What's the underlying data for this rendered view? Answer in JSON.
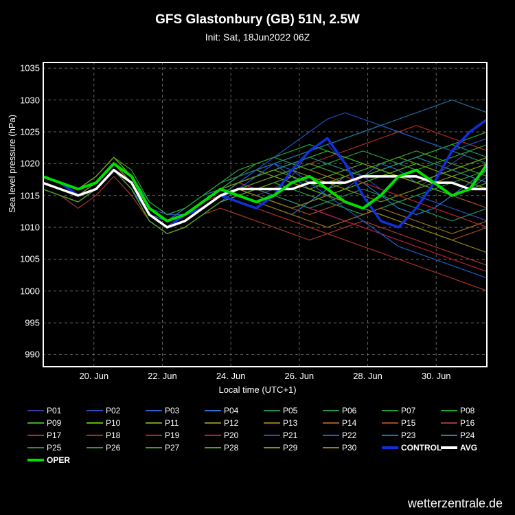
{
  "title": "GFS Glastonbury (GB) 51N, 2.5W",
  "subtitle": "Init: Sat, 18Jun2022 06Z",
  "watermark": "wetterzentrale.de",
  "chart": {
    "type": "line",
    "background_color": "#000000",
    "grid_color": "#666666",
    "axis_color": "#ffffff",
    "text_color": "#ffffff",
    "ylabel": "Sea level pressure (hPa)",
    "xlabel": "Local time (UTC+1)",
    "ylim": [
      988,
      1036
    ],
    "yticks": [
      990,
      995,
      1000,
      1005,
      1010,
      1015,
      1020,
      1025,
      1030,
      1035
    ],
    "xlim": [
      0,
      13
    ],
    "xticks": [
      1.5,
      3.5,
      5.5,
      7.5,
      9.5,
      11.5
    ],
    "xtick_labels": [
      "20. Jun",
      "22. Jun",
      "24. Jun",
      "26. Jun",
      "28. Jun",
      "30. Jun"
    ],
    "title_fontsize": 19,
    "subtitle_fontsize": 14,
    "label_fontsize": 13,
    "tick_fontsize": 13,
    "legend_fontsize": 12,
    "thin_line_width": 1.2,
    "thick_line_width": 3.5,
    "grid_dash": "4,4",
    "series": [
      {
        "name": "P01",
        "color": "#3a3a9e",
        "width": 1.2,
        "y": [
          1017,
          1016,
          1015,
          1016,
          1019,
          1017,
          1013,
          1011,
          1012,
          1013,
          1015,
          1016,
          1015,
          1016,
          1018,
          1022,
          1023,
          1020,
          1018,
          1016,
          1015,
          1016,
          1018,
          1020,
          1022,
          1021
        ]
      },
      {
        "name": "P02",
        "color": "#2e4bc0",
        "width": 1.2,
        "y": [
          1018,
          1017,
          1015,
          1017,
          1020,
          1018,
          1013,
          1012,
          1012,
          1014,
          1016,
          1017,
          1016,
          1015,
          1014,
          1013,
          1012,
          1011,
          1012,
          1013,
          1014,
          1015,
          1014,
          1013,
          1012,
          1011
        ]
      },
      {
        "name": "P03",
        "color": "#2a5fd0",
        "width": 1.2,
        "y": [
          1016,
          1015,
          1014,
          1016,
          1019,
          1016,
          1012,
          1010,
          1011,
          1013,
          1015,
          1017,
          1019,
          1020,
          1018,
          1016,
          1015,
          1016,
          1018,
          1020,
          1019,
          1017,
          1016,
          1015,
          1016,
          1018
        ]
      },
      {
        "name": "P04",
        "color": "#2878d8",
        "width": 1.2,
        "y": [
          1017,
          1016,
          1015,
          1017,
          1020,
          1017,
          1012,
          1011,
          1013,
          1015,
          1016,
          1015,
          1014,
          1013,
          1012,
          1014,
          1016,
          1018,
          1017,
          1015,
          1013,
          1012,
          1013,
          1015,
          1017,
          1019
        ]
      },
      {
        "name": "P05",
        "color": "#1f8a70",
        "width": 1.2,
        "y": [
          1018,
          1017,
          1016,
          1018,
          1021,
          1018,
          1014,
          1012,
          1013,
          1015,
          1017,
          1018,
          1019,
          1020,
          1021,
          1022,
          1023,
          1024,
          1025,
          1026,
          1025,
          1024,
          1023,
          1022,
          1021,
          1020
        ]
      },
      {
        "name": "P06",
        "color": "#1a9850",
        "width": 1.2,
        "y": [
          1017,
          1016,
          1015,
          1017,
          1020,
          1017,
          1013,
          1011,
          1012,
          1014,
          1016,
          1017,
          1018,
          1019,
          1020,
          1019,
          1018,
          1017,
          1018,
          1019,
          1020,
          1021,
          1022,
          1023,
          1022,
          1021
        ]
      },
      {
        "name": "P07",
        "color": "#1fa040",
        "width": 1.2,
        "y": [
          1016,
          1015,
          1014,
          1016,
          1019,
          1016,
          1011,
          1009,
          1010,
          1012,
          1014,
          1015,
          1016,
          1017,
          1016,
          1015,
          1014,
          1013,
          1012,
          1013,
          1014,
          1015,
          1016,
          1017,
          1018,
          1019
        ]
      },
      {
        "name": "P08",
        "color": "#20aa30",
        "width": 1.2,
        "y": [
          1018,
          1017,
          1016,
          1018,
          1021,
          1019,
          1014,
          1012,
          1013,
          1015,
          1017,
          1019,
          1020,
          1021,
          1022,
          1023,
          1022,
          1021,
          1020,
          1019,
          1020,
          1021,
          1022,
          1023,
          1024,
          1025
        ]
      },
      {
        "name": "P09",
        "color": "#3ab020",
        "width": 1.2,
        "y": [
          1017,
          1016,
          1015,
          1017,
          1020,
          1017,
          1012,
          1010,
          1011,
          1013,
          1015,
          1017,
          1018,
          1019,
          1020,
          1021,
          1022,
          1021,
          1020,
          1019,
          1018,
          1017,
          1018,
          1019,
          1020,
          1021
        ]
      },
      {
        "name": "P10",
        "color": "#55b810",
        "width": 1.2,
        "y": [
          1016,
          1015,
          1014,
          1016,
          1019,
          1016,
          1011,
          1009,
          1010,
          1012,
          1014,
          1016,
          1017,
          1018,
          1017,
          1016,
          1015,
          1016,
          1017,
          1018,
          1019,
          1020,
          1019,
          1018,
          1017,
          1016
        ]
      },
      {
        "name": "P11",
        "color": "#70a010",
        "width": 1.2,
        "y": [
          1018,
          1017,
          1016,
          1018,
          1021,
          1018,
          1013,
          1011,
          1012,
          1014,
          1016,
          1018,
          1019,
          1018,
          1017,
          1016,
          1017,
          1018,
          1019,
          1020,
          1021,
          1020,
          1019,
          1018,
          1019,
          1020
        ]
      },
      {
        "name": "P12",
        "color": "#888810",
        "width": 1.2,
        "y": [
          1017,
          1016,
          1015,
          1017,
          1020,
          1017,
          1012,
          1010,
          1011,
          1013,
          1015,
          1016,
          1017,
          1018,
          1019,
          1018,
          1017,
          1016,
          1015,
          1014,
          1015,
          1016,
          1017,
          1018,
          1017,
          1016
        ]
      },
      {
        "name": "P13",
        "color": "#987018",
        "width": 1.2,
        "y": [
          1016,
          1015,
          1014,
          1016,
          1019,
          1016,
          1011,
          1009,
          1010,
          1012,
          1014,
          1015,
          1014,
          1013,
          1012,
          1011,
          1010,
          1011,
          1012,
          1013,
          1012,
          1011,
          1010,
          1009,
          1010,
          1011
        ]
      },
      {
        "name": "P14",
        "color": "#a05820",
        "width": 1.2,
        "y": [
          1018,
          1017,
          1016,
          1018,
          1021,
          1018,
          1013,
          1011,
          1012,
          1014,
          1016,
          1017,
          1018,
          1019,
          1020,
          1019,
          1018,
          1017,
          1018,
          1019,
          1018,
          1017,
          1016,
          1015,
          1014,
          1013
        ]
      },
      {
        "name": "P15",
        "color": "#a04828",
        "width": 1.2,
        "y": [
          1017,
          1016,
          1015,
          1017,
          1020,
          1017,
          1012,
          1010,
          1011,
          1013,
          1015,
          1016,
          1015,
          1014,
          1013,
          1012,
          1013,
          1014,
          1013,
          1012,
          1011,
          1010,
          1009,
          1008,
          1009,
          1010
        ]
      },
      {
        "name": "P16",
        "color": "#a03830",
        "width": 1.2,
        "y": [
          1016,
          1015,
          1013,
          1015,
          1018,
          1015,
          1011,
          1009,
          1010,
          1012,
          1013,
          1012,
          1011,
          1010,
          1009,
          1008,
          1009,
          1010,
          1011,
          1010,
          1009,
          1008,
          1007,
          1006,
          1005,
          1004
        ]
      },
      {
        "name": "P17",
        "color": "#a83028",
        "width": 1.2,
        "y": [
          1018,
          1017,
          1016,
          1018,
          1021,
          1018,
          1013,
          1011,
          1012,
          1014,
          1015,
          1014,
          1013,
          1012,
          1011,
          1010,
          1009,
          1008,
          1007,
          1006,
          1005,
          1004,
          1003,
          1002,
          1001,
          1000
        ]
      },
      {
        "name": "P18",
        "color": "#b02820",
        "width": 1.2,
        "y": [
          1017,
          1016,
          1015,
          1017,
          1020,
          1017,
          1012,
          1010,
          1011,
          1013,
          1015,
          1016,
          1017,
          1018,
          1019,
          1020,
          1021,
          1022,
          1023,
          1024,
          1025,
          1026,
          1025,
          1024,
          1023,
          1022
        ]
      },
      {
        "name": "P19",
        "color": "#b82030",
        "width": 1.2,
        "y": [
          1016,
          1015,
          1014,
          1016,
          1019,
          1016,
          1011,
          1009,
          1010,
          1012,
          1014,
          1016,
          1017,
          1018,
          1019,
          1020,
          1019,
          1018,
          1017,
          1016,
          1015,
          1014,
          1013,
          1012,
          1011,
          1010
        ]
      },
      {
        "name": "P20",
        "color": "#c01840",
        "width": 1.2,
        "y": [
          1018,
          1017,
          1016,
          1018,
          1021,
          1018,
          1013,
          1011,
          1012,
          1014,
          1016,
          1017,
          1016,
          1015,
          1014,
          1013,
          1012,
          1011,
          1010,
          1009,
          1008,
          1007,
          1006,
          1005,
          1004,
          1003
        ]
      },
      {
        "name": "P21",
        "color": "#2050c0",
        "width": 1.2,
        "y": [
          1017,
          1016,
          1015,
          1017,
          1020,
          1017,
          1012,
          1010,
          1011,
          1013,
          1015,
          1017,
          1019,
          1021,
          1023,
          1025,
          1027,
          1028,
          1027,
          1026,
          1025,
          1024,
          1023,
          1022,
          1023,
          1024
        ]
      },
      {
        "name": "P22",
        "color": "#1860d0",
        "width": 1.2,
        "y": [
          1016,
          1015,
          1014,
          1016,
          1019,
          1016,
          1011,
          1009,
          1010,
          1012,
          1014,
          1016,
          1018,
          1020,
          1019,
          1017,
          1015,
          1013,
          1011,
          1009,
          1007,
          1006,
          1005,
          1004,
          1003,
          1002
        ]
      },
      {
        "name": "P23",
        "color": "#2070a0",
        "width": 1.2,
        "y": [
          1018,
          1017,
          1016,
          1018,
          1021,
          1018,
          1013,
          1011,
          1012,
          1014,
          1016,
          1018,
          1019,
          1020,
          1021,
          1022,
          1023,
          1024,
          1025,
          1026,
          1027,
          1028,
          1029,
          1030,
          1029,
          1028
        ]
      },
      {
        "name": "P24",
        "color": "#208890",
        "width": 1.2,
        "y": [
          1017,
          1016,
          1015,
          1017,
          1020,
          1017,
          1012,
          1010,
          1011,
          1013,
          1015,
          1017,
          1018,
          1019,
          1020,
          1021,
          1020,
          1019,
          1018,
          1019,
          1020,
          1021,
          1020,
          1019,
          1018,
          1017
        ]
      },
      {
        "name": "P25",
        "color": "#209060",
        "width": 1.2,
        "y": [
          1016,
          1015,
          1014,
          1016,
          1019,
          1016,
          1011,
          1009,
          1010,
          1012,
          1014,
          1015,
          1016,
          1015,
          1014,
          1013,
          1014,
          1015,
          1016,
          1015,
          1014,
          1013,
          1012,
          1011,
          1012,
          1013
        ]
      },
      {
        "name": "P26",
        "color": "#309840",
        "width": 1.2,
        "y": [
          1018,
          1017,
          1016,
          1018,
          1021,
          1018,
          1013,
          1011,
          1012,
          1014,
          1016,
          1018,
          1020,
          1021,
          1020,
          1019,
          1020,
          1021,
          1022,
          1021,
          1020,
          1019,
          1020,
          1021,
          1022,
          1023
        ]
      },
      {
        "name": "P27",
        "color": "#40a020",
        "width": 1.2,
        "y": [
          1017,
          1016,
          1015,
          1017,
          1020,
          1017,
          1012,
          1010,
          1011,
          1013,
          1015,
          1016,
          1017,
          1018,
          1019,
          1020,
          1019,
          1018,
          1019,
          1020,
          1021,
          1022,
          1021,
          1020,
          1019,
          1018
        ]
      },
      {
        "name": "P28",
        "color": "#50a810",
        "width": 1.2,
        "y": [
          1016,
          1015,
          1014,
          1016,
          1019,
          1016,
          1011,
          1009,
          1010,
          1012,
          1014,
          1015,
          1016,
          1017,
          1018,
          1017,
          1016,
          1017,
          1018,
          1019,
          1018,
          1017,
          1016,
          1015,
          1016,
          1017
        ]
      },
      {
        "name": "P29",
        "color": "#70a008",
        "width": 1.2,
        "y": [
          1018,
          1017,
          1016,
          1018,
          1021,
          1018,
          1013,
          1011,
          1012,
          1014,
          1016,
          1017,
          1018,
          1019,
          1018,
          1017,
          1018,
          1019,
          1020,
          1019,
          1018,
          1017,
          1018,
          1019,
          1020,
          1021
        ]
      },
      {
        "name": "P30",
        "color": "#908808",
        "width": 1.2,
        "y": [
          1017,
          1016,
          1015,
          1017,
          1020,
          1017,
          1012,
          1010,
          1011,
          1013,
          1015,
          1016,
          1015,
          1014,
          1013,
          1014,
          1015,
          1014,
          1013,
          1012,
          1011,
          1010,
          1009,
          1008,
          1007,
          1006
        ]
      },
      {
        "name": "CONTROL",
        "color": "#1030e0",
        "width": 3.5,
        "y": [
          1018,
          1017,
          1015,
          1016,
          1019,
          1017,
          1012,
          1010,
          1012,
          1013,
          1015,
          1014,
          1013,
          1015,
          1019,
          1022,
          1024,
          1020,
          1015,
          1011,
          1010,
          1013,
          1017,
          1022,
          1025,
          1027
        ]
      },
      {
        "name": "AVG",
        "color": "#ffffff",
        "width": 3.5,
        "y": [
          1017,
          1016,
          1015,
          1016,
          1019,
          1017,
          1012,
          1010,
          1011,
          1013,
          1015,
          1016,
          1016,
          1016,
          1016,
          1017,
          1017,
          1017,
          1018,
          1018,
          1018,
          1018,
          1017,
          1017,
          1016,
          1016
        ]
      },
      {
        "name": "OPER",
        "color": "#00e000",
        "width": 4,
        "y": [
          1018,
          1017,
          1016,
          1017,
          1020,
          1018,
          1013,
          1011,
          1012,
          1014,
          1016,
          1015,
          1014,
          1015,
          1017,
          1018,
          1016,
          1014,
          1013,
          1015,
          1018,
          1019,
          1017,
          1015,
          1016,
          1020
        ]
      }
    ]
  }
}
